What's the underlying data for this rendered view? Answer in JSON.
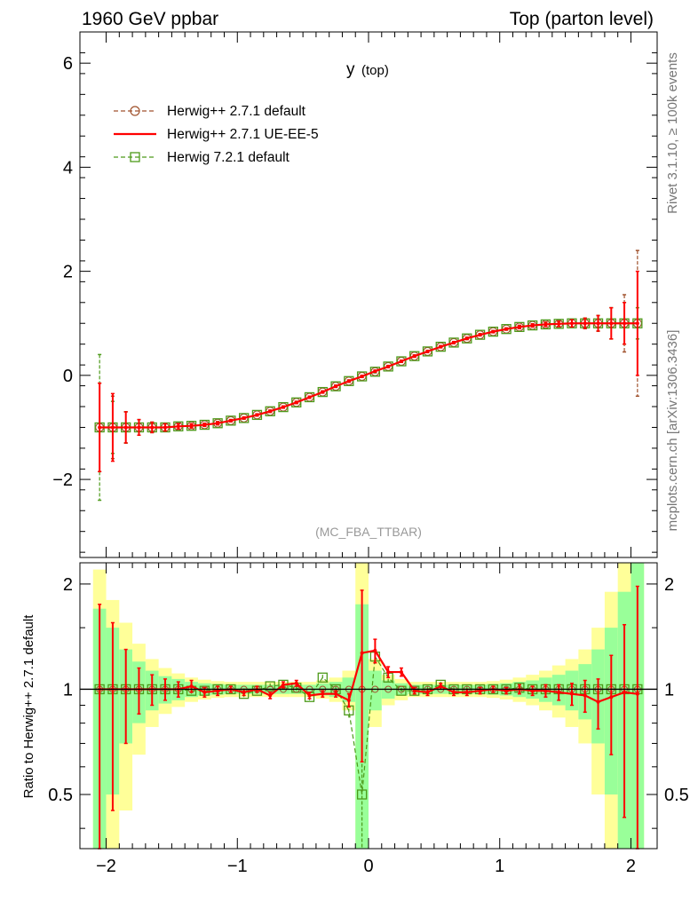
{
  "header": {
    "left": "1960 GeV ppbar",
    "right": "Top (parton level)"
  },
  "side_labels": {
    "rivet": "Rivet 3.1.10, ≥ 100k events",
    "mcplots": "mcplots.cern.ch [arXiv:1306.3436]"
  },
  "chart_data": [
    {
      "type": "line",
      "panel": "main",
      "title": "y",
      "title_sub": "(top)",
      "analysis": "(MC_FBA_TTBAR)",
      "xlim": [
        -2.2,
        2.2
      ],
      "ylim": [
        -3.5,
        6.6
      ],
      "yticks": [
        "−2",
        "0",
        "2",
        "4",
        "6"
      ],
      "ytick_values": [
        -2,
        0,
        2,
        4,
        6
      ],
      "legend_position": "top-left",
      "x": [
        -2.05,
        -1.95,
        -1.85,
        -1.75,
        -1.65,
        -1.55,
        -1.45,
        -1.35,
        -1.25,
        -1.15,
        -1.05,
        -0.95,
        -0.85,
        -0.75,
        -0.65,
        -0.55,
        -0.45,
        -0.35,
        -0.25,
        -0.15,
        -0.05,
        0.05,
        0.15,
        0.25,
        0.35,
        0.45,
        0.55,
        0.65,
        0.75,
        0.85,
        0.95,
        1.05,
        1.15,
        1.25,
        1.35,
        1.45,
        1.55,
        1.65,
        1.75,
        1.85,
        1.95,
        2.05
      ],
      "series": [
        {
          "name": "Herwig++ 2.7.1 default",
          "color": "#a0522d",
          "style": "dashed-circle",
          "values": [
            -1.0,
            -1.0,
            -1.0,
            -1.0,
            -1.0,
            -1.0,
            -0.98,
            -0.97,
            -0.95,
            -0.92,
            -0.87,
            -0.82,
            -0.76,
            -0.69,
            -0.61,
            -0.52,
            -0.42,
            -0.32,
            -0.21,
            -0.11,
            -0.02,
            0.07,
            0.17,
            0.27,
            0.37,
            0.46,
            0.55,
            0.63,
            0.71,
            0.78,
            0.84,
            0.89,
            0.93,
            0.96,
            0.98,
            0.99,
            1.0,
            1.0,
            1.0,
            1.0,
            1.0,
            1.0
          ],
          "errors": [
            0.85,
            0.6,
            0.3,
            0.15,
            0.1,
            0.07,
            0.05,
            0.04,
            0.03,
            0.03,
            0.02,
            0.02,
            0.02,
            0.02,
            0.02,
            0.02,
            0.02,
            0.02,
            0.02,
            0.02,
            0.02,
            0.02,
            0.02,
            0.02,
            0.02,
            0.02,
            0.02,
            0.02,
            0.02,
            0.02,
            0.02,
            0.02,
            0.03,
            0.03,
            0.04,
            0.05,
            0.07,
            0.1,
            0.15,
            0.3,
            0.55,
            1.4
          ]
        },
        {
          "name": "Herwig++ 2.7.1 UE-EE-5",
          "color": "#ff0000",
          "style": "solid",
          "values": [
            -1.0,
            -1.0,
            -1.0,
            -1.0,
            -1.0,
            -1.0,
            -0.98,
            -0.97,
            -0.95,
            -0.92,
            -0.87,
            -0.82,
            -0.76,
            -0.69,
            -0.61,
            -0.52,
            -0.42,
            -0.32,
            -0.21,
            -0.11,
            -0.02,
            0.08,
            0.17,
            0.27,
            0.37,
            0.46,
            0.55,
            0.63,
            0.71,
            0.78,
            0.84,
            0.89,
            0.93,
            0.96,
            0.98,
            0.99,
            1.0,
            1.0,
            1.0,
            1.0,
            1.0,
            1.0
          ],
          "errors": [
            0.85,
            0.65,
            0.3,
            0.15,
            0.1,
            0.07,
            0.05,
            0.04,
            0.03,
            0.03,
            0.02,
            0.02,
            0.02,
            0.02,
            0.02,
            0.02,
            0.02,
            0.02,
            0.02,
            0.02,
            0.02,
            0.02,
            0.02,
            0.02,
            0.02,
            0.02,
            0.02,
            0.02,
            0.02,
            0.02,
            0.02,
            0.02,
            0.03,
            0.03,
            0.04,
            0.05,
            0.07,
            0.1,
            0.15,
            0.3,
            0.4,
            1.0
          ]
        },
        {
          "name": "Herwig 7.2.1 default",
          "color": "#4d9a1a",
          "style": "dashed-square",
          "values": [
            -1.0,
            -1.0,
            -1.0,
            -1.0,
            -1.0,
            -1.0,
            -0.98,
            -0.97,
            -0.95,
            -0.92,
            -0.87,
            -0.82,
            -0.76,
            -0.69,
            -0.61,
            -0.52,
            -0.42,
            -0.32,
            -0.21,
            -0.11,
            -0.02,
            0.07,
            0.17,
            0.27,
            0.37,
            0.46,
            0.55,
            0.63,
            0.71,
            0.78,
            0.84,
            0.89,
            0.93,
            0.96,
            0.98,
            0.99,
            1.0,
            1.0,
            1.0,
            1.0,
            1.0,
            1.0
          ],
          "errors": [
            1.4,
            0.5,
            0.3,
            0.15,
            0.1,
            0.07,
            0.05,
            0.04,
            0.03,
            0.03,
            0.02,
            0.02,
            0.02,
            0.02,
            0.02,
            0.02,
            0.02,
            0.02,
            0.02,
            0.02,
            0.02,
            0.02,
            0.02,
            0.02,
            0.02,
            0.02,
            0.02,
            0.02,
            0.02,
            0.02,
            0.02,
            0.02,
            0.03,
            0.03,
            0.04,
            0.05,
            0.07,
            0.1,
            0.15,
            0.3,
            0.4,
            0.3
          ]
        }
      ]
    },
    {
      "type": "line",
      "panel": "ratio",
      "ylabel": "Ratio to Herwig++ 2.7.1 default",
      "xlim": [
        -2.2,
        2.2
      ],
      "ylim": [
        0.35,
        2.3
      ],
      "scale": "log",
      "xticks": [
        "−2",
        "−1",
        "0",
        "1",
        "2"
      ],
      "xtick_values": [
        -2,
        -1,
        0,
        1,
        2
      ],
      "yticks": [
        "0.5",
        "1",
        "2"
      ],
      "ytick_values": [
        0.5,
        1,
        2
      ],
      "x": [
        -2.05,
        -1.95,
        -1.85,
        -1.75,
        -1.65,
        -1.55,
        -1.45,
        -1.35,
        -1.25,
        -1.15,
        -1.05,
        -0.95,
        -0.85,
        -0.75,
        -0.65,
        -0.55,
        -0.45,
        -0.35,
        -0.25,
        -0.15,
        -0.05,
        0.05,
        0.15,
        0.25,
        0.35,
        0.45,
        0.55,
        0.65,
        0.75,
        0.85,
        0.95,
        1.05,
        1.15,
        1.25,
        1.35,
        1.45,
        1.55,
        1.65,
        1.75,
        1.85,
        1.95,
        2.05
      ],
      "band_inner": [
        0.7,
        0.5,
        0.3,
        0.2,
        0.13,
        0.09,
        0.07,
        0.05,
        0.04,
        0.035,
        0.03,
        0.03,
        0.03,
        0.03,
        0.03,
        0.03,
        0.03,
        0.04,
        0.05,
        0.08,
        0.75,
        0.13,
        0.06,
        0.04,
        0.03,
        0.03,
        0.03,
        0.03,
        0.03,
        0.03,
        0.035,
        0.04,
        0.05,
        0.06,
        0.08,
        0.1,
        0.13,
        0.18,
        0.3,
        0.5,
        0.9,
        1.3
      ],
      "band_outer": [
        1.2,
        0.8,
        0.55,
        0.35,
        0.22,
        0.15,
        0.11,
        0.08,
        0.065,
        0.055,
        0.05,
        0.05,
        0.05,
        0.05,
        0.05,
        0.05,
        0.05,
        0.06,
        0.08,
        0.13,
        1.3,
        0.22,
        0.1,
        0.07,
        0.05,
        0.05,
        0.05,
        0.05,
        0.05,
        0.05,
        0.055,
        0.065,
        0.08,
        0.1,
        0.13,
        0.17,
        0.22,
        0.3,
        0.5,
        0.9,
        1.4,
        1.9
      ],
      "series": [
        {
          "name": "Herwig++ 2.7.1 default",
          "color": "#a0522d",
          "values": [
            1,
            1,
            1,
            1,
            1,
            1,
            1,
            1,
            1,
            1,
            1,
            1,
            1,
            1,
            1,
            1,
            1,
            1,
            1,
            1,
            1,
            1,
            1,
            1,
            1,
            1,
            1,
            1,
            1,
            1,
            1,
            1,
            1,
            1,
            1,
            1,
            1,
            1,
            1,
            1,
            1,
            1
          ]
        },
        {
          "name": "Herwig++ 2.7.1 UE-EE-5",
          "color": "#ff0000",
          "values": [
            1.0,
            1.0,
            1.0,
            1.0,
            1.0,
            1.0,
            1.0,
            1.02,
            0.98,
            0.99,
            1.0,
            0.98,
            1.0,
            0.96,
            1.03,
            1.04,
            0.96,
            0.97,
            0.97,
            0.93,
            1.27,
            1.29,
            1.12,
            1.12,
            0.99,
            0.98,
            1.02,
            0.98,
            0.98,
            0.99,
            1.0,
            0.99,
            1.0,
            0.99,
            0.99,
            0.98,
            0.97,
            0.96,
            0.92,
            0.95,
            0.98,
            0.97
          ],
          "errors": [
            0.75,
            0.55,
            0.3,
            0.15,
            0.1,
            0.07,
            0.05,
            0.04,
            0.03,
            0.03,
            0.02,
            0.02,
            0.02,
            0.02,
            0.02,
            0.02,
            0.02,
            0.02,
            0.02,
            0.04,
            0.65,
            0.1,
            0.04,
            0.03,
            0.02,
            0.02,
            0.02,
            0.02,
            0.02,
            0.02,
            0.02,
            0.02,
            0.03,
            0.03,
            0.04,
            0.05,
            0.07,
            0.1,
            0.15,
            0.3,
            0.55,
            1.0
          ]
        },
        {
          "name": "Herwig 7.2.1 default",
          "color": "#4d9a1a",
          "values": [
            1.0,
            1.0,
            1.0,
            1.0,
            1.0,
            1.0,
            1.0,
            0.99,
            0.99,
            1.0,
            1.0,
            0.97,
            0.99,
            1.02,
            1.03,
            1.01,
            0.95,
            1.08,
            1.0,
            0.87,
            0.5,
            1.24,
            1.08,
            0.99,
            0.99,
            1.0,
            1.03,
            1.0,
            1.0,
            1.0,
            1.0,
            1.0,
            1.01,
            1.0,
            1.0,
            1.0,
            1.0,
            1.0,
            1.0,
            1.0,
            1.0,
            1.0
          ],
          "errors": [
            0.04,
            0.04,
            0.03,
            0.03,
            0.02,
            0.02,
            0.02,
            0.02,
            0.02,
            0.02,
            0.02,
            0.02,
            0.02,
            0.02,
            0.02,
            0.02,
            0.02,
            0.02,
            0.02,
            0.04,
            0.4,
            0.06,
            0.03,
            0.02,
            0.02,
            0.02,
            0.02,
            0.02,
            0.02,
            0.02,
            0.02,
            0.02,
            0.02,
            0.02,
            0.02,
            0.02,
            0.02,
            0.02,
            0.02,
            0.02,
            0.02,
            0.02
          ]
        }
      ]
    }
  ]
}
